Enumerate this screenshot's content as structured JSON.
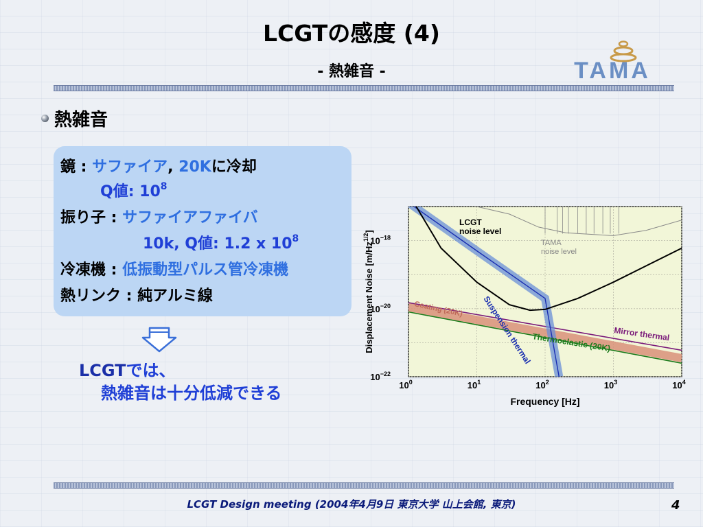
{
  "slide": {
    "title": "LCGTの感度 (4)",
    "subtitle": "- 熱雑音 -",
    "logo_text": "TAMA",
    "bullet": "熱雑音",
    "box": {
      "mirror_label": "鏡 : ",
      "mirror_value": "サファイア",
      "mirror_sep": ", ",
      "mirror_temp": "20K",
      "mirror_cool": "に冷却",
      "q_label": "Q値: 10",
      "q_exp": "8",
      "pendulum_label": "振り子 : ",
      "pendulum_value": "サファイアファイバ",
      "pendulum_q": "10k, Q値: 1.2 x 10",
      "pendulum_q_exp": "8",
      "cryo_label": "冷凍機 : ",
      "cryo_value": "低振動型パルス管冷凍機",
      "link_label": "熱リンク : ",
      "link_value": "純アルミ線"
    },
    "conclusion_line1_a": "LCGT",
    "conclusion_line1_b": "では、",
    "conclusion_line2": "熱雑音は十分低減できる",
    "footer": "LCGT Design meeting (2004年4月9日 東京大学 山上会館, 東京)",
    "page_number": "4"
  },
  "chart_data": {
    "type": "line",
    "x_scale": "log",
    "y_scale": "log",
    "xlabel": "Frequency   [Hz]",
    "ylabel": "Displacement Noise   [m/Hz",
    "ylabel_exp": "1/2",
    "ylabel_close": "]",
    "xlim": [
      1,
      10000
    ],
    "ylim": [
      1e-22,
      1e-17
    ],
    "x_ticks": [
      {
        "base": "10",
        "exp": "0"
      },
      {
        "base": "10",
        "exp": "1"
      },
      {
        "base": "10",
        "exp": "2"
      },
      {
        "base": "10",
        "exp": "3"
      },
      {
        "base": "10",
        "exp": "4"
      }
    ],
    "y_ticks": [
      {
        "base": "10",
        "exp": "−18"
      },
      {
        "base": "10",
        "exp": "−20"
      },
      {
        "base": "10",
        "exp": "−22"
      }
    ],
    "grid": true,
    "colors": {
      "plot_bg": "#f2f6d8",
      "lcgt": "#000000",
      "tama": "#888888",
      "suspension": "#6a8fd8",
      "coating": "#d9907a",
      "mirror": "#7a1a7a",
      "thermoelastic": "#1a7a1a"
    },
    "annotations": {
      "lcgt_1": "LCGT",
      "lcgt_2": "noise level",
      "tama_1": "TAMA",
      "tama_2": "noise level",
      "coating": "Coating (20K)",
      "suspension": "Suspension thermal",
      "mirror": "Mirror thermal",
      "thermoelastic": "Thermoelastic (20K)"
    },
    "series": [
      {
        "name": "LCGT noise level",
        "x": [
          1.3,
          3,
          10,
          30,
          60,
          100,
          300,
          1000,
          3000,
          10000
        ],
        "y": [
          1e-17,
          6e-19,
          6e-20,
          1.3e-20,
          9e-21,
          9.5e-21,
          2e-20,
          6e-20,
          1.8e-19,
          6e-19
        ]
      },
      {
        "name": "TAMA noise level",
        "x": [
          10,
          30,
          80,
          200,
          1000,
          3000,
          10000
        ],
        "y": [
          1e-17,
          6e-18,
          2.5e-18,
          1.7e-18,
          1.4e-18,
          2e-18,
          4e-18
        ]
      },
      {
        "name": "Suspension thermal",
        "x": [
          1,
          10,
          100,
          160
        ],
        "y": [
          1.3e-17,
          5e-19,
          2e-20,
          1e-22
        ]
      },
      {
        "name": "Coating (20K)",
        "x": [
          1,
          10000
        ],
        "y": [
          1.1e-20,
          3.5e-22
        ]
      },
      {
        "name": "Mirror thermal",
        "x": [
          1,
          10000
        ],
        "y": [
          1.5e-20,
          6e-22
        ]
      },
      {
        "name": "Thermoelastic (20K)",
        "x": [
          1,
          10000
        ],
        "y": [
          8e-21,
          2.5e-22
        ]
      }
    ]
  }
}
